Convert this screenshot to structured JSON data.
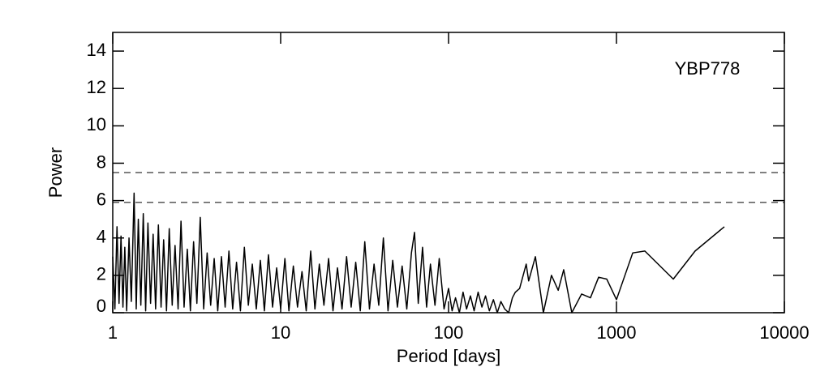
{
  "chart_data": {
    "type": "line",
    "annotation": "YBP778",
    "x_label": "Period [days]",
    "y_label": "Power",
    "xscale": "log",
    "xlim": [
      1,
      10000
    ],
    "xticks": [
      1,
      10,
      100,
      1000,
      10000
    ],
    "ylim": [
      0,
      15
    ],
    "yticks": [
      0,
      2,
      4,
      6,
      8,
      10,
      12,
      14
    ],
    "thresholds": [
      7.5,
      5.9
    ],
    "color": "#000000",
    "x": [
      1.0,
      1.03,
      1.06,
      1.09,
      1.12,
      1.15,
      1.18,
      1.21,
      1.25,
      1.29,
      1.34,
      1.38,
      1.42,
      1.47,
      1.52,
      1.57,
      1.62,
      1.68,
      1.74,
      1.8,
      1.87,
      1.94,
      2.01,
      2.09,
      2.17,
      2.26,
      2.35,
      2.45,
      2.55,
      2.66,
      2.78,
      2.9,
      3.03,
      3.17,
      3.32,
      3.48,
      3.65,
      3.83,
      4.02,
      4.22,
      4.44,
      4.67,
      4.92,
      5.18,
      5.46,
      5.76,
      6.08,
      6.42,
      6.78,
      7.16,
      7.57,
      8.0,
      8.46,
      8.95,
      9.47,
      10.0,
      10.6,
      11.2,
      11.9,
      12.6,
      13.4,
      14.2,
      15.1,
      16.0,
      17.0,
      18.1,
      19.3,
      20.5,
      21.8,
      23.2,
      24.7,
      26.3,
      28.0,
      29.8,
      31.7,
      33.8,
      36.0,
      38.4,
      40.9,
      43.6,
      46.5,
      49.6,
      52.9,
      56.4,
      60.1,
      62.7,
      66.0,
      70.0,
      74.0,
      78.0,
      83.0,
      88.0,
      94.0,
      100,
      105,
      110,
      116,
      122,
      128,
      135,
      142,
      150,
      158,
      166,
      175,
      185,
      195,
      205,
      216,
      228,
      240,
      250,
      265,
      290,
      300,
      329,
      345,
      367,
      410,
      450,
      485,
      542,
      620,
      700,
      783,
      875,
      1000,
      1250,
      1476,
      2180,
      2940,
      4390
    ],
    "values": [
      3.0,
      0.2,
      4.6,
      0.5,
      4.1,
      0.3,
      3.5,
      0.1,
      4.0,
      0.6,
      6.4,
      0.2,
      5.0,
      0.4,
      5.3,
      0.1,
      4.8,
      0.5,
      4.2,
      0.2,
      4.7,
      0.3,
      3.9,
      0.1,
      4.5,
      0.4,
      3.6,
      0.2,
      4.9,
      0.3,
      3.4,
      0.1,
      3.8,
      0.5,
      5.1,
      0.2,
      3.2,
      0.4,
      2.9,
      0.1,
      3.0,
      0.3,
      3.3,
      0.2,
      2.7,
      0.1,
      3.5,
      0.4,
      2.6,
      0.2,
      2.8,
      0.1,
      3.1,
      0.3,
      2.4,
      0.2,
      2.9,
      0.1,
      2.5,
      0.3,
      2.2,
      0.1,
      3.3,
      0.2,
      2.6,
      0.4,
      2.9,
      0.1,
      2.4,
      0.2,
      3.0,
      0.3,
      2.7,
      0.1,
      3.8,
      0.2,
      2.6,
      0.4,
      4.0,
      0.1,
      2.8,
      0.3,
      2.5,
      0.2,
      3.2,
      4.3,
      0.5,
      3.5,
      0.3,
      2.6,
      0.4,
      2.9,
      0.2,
      1.3,
      0.1,
      0.8,
      0.0,
      1.1,
      0.2,
      0.9,
      0.1,
      1.1,
      0.3,
      0.9,
      0.1,
      0.7,
      0.0,
      0.6,
      0.2,
      0.0,
      0.8,
      1.1,
      1.3,
      2.6,
      1.7,
      3.0,
      1.7,
      0.0,
      2.0,
      1.2,
      2.3,
      0.0,
      1.0,
      0.8,
      1.9,
      1.8,
      0.7,
      3.2,
      3.3,
      1.8,
      3.3,
      4.6
    ]
  }
}
